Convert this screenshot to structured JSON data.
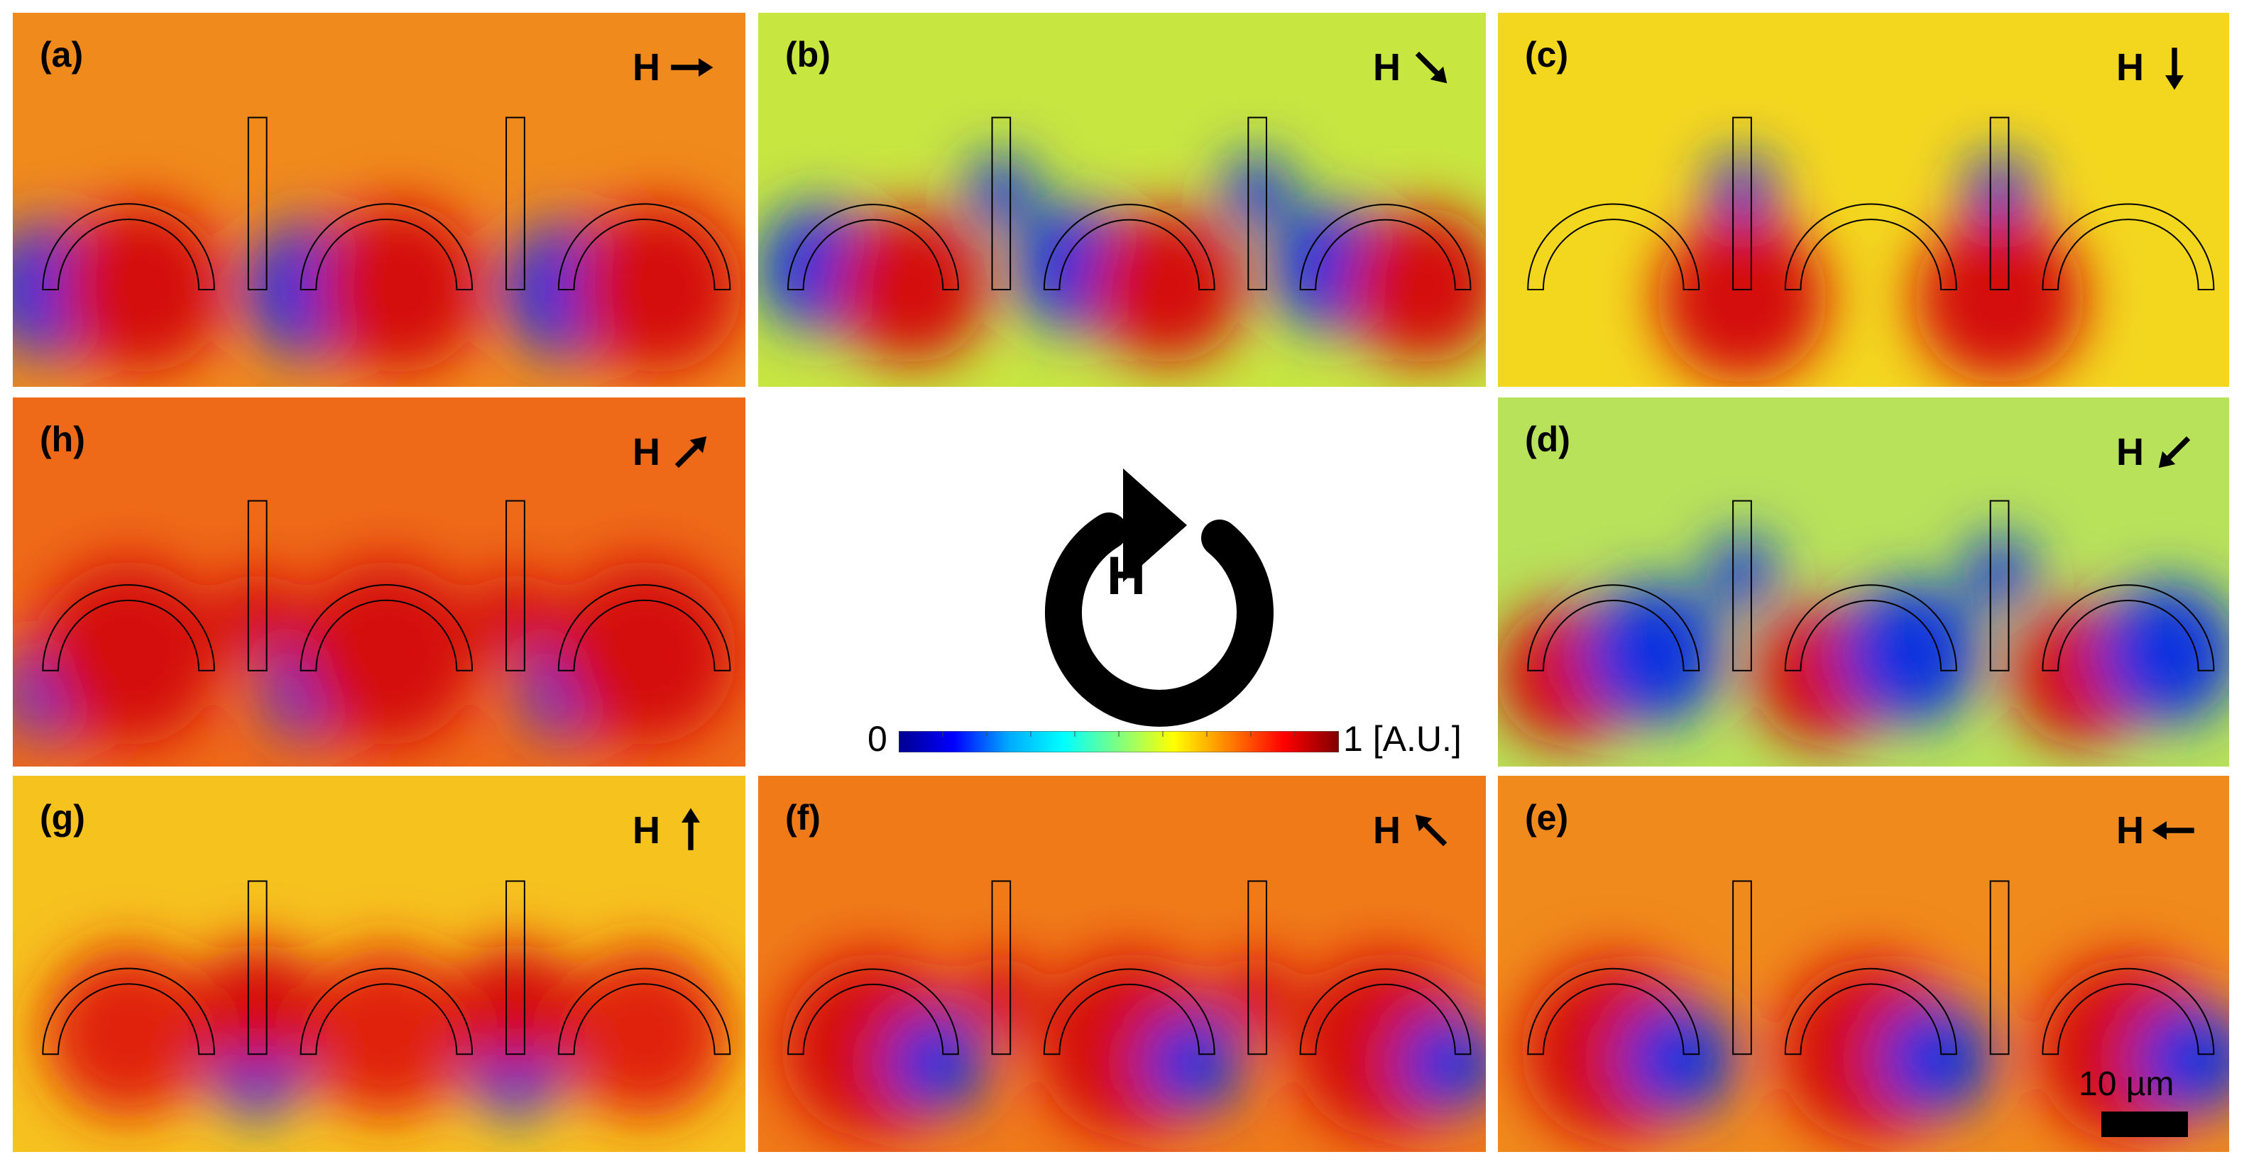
{
  "panels": [
    {
      "id": "a",
      "label": "(a)",
      "h_letter": "H",
      "h_arrow": "right-arrow-icon",
      "angle": 0
    },
    {
      "id": "b",
      "label": "(b)",
      "h_letter": "H",
      "h_arrow": "down-right-arrow-icon",
      "angle": 45
    },
    {
      "id": "c",
      "label": "(c)",
      "h_letter": "H",
      "h_arrow": "down-arrow-icon",
      "angle": 90
    },
    {
      "id": "h",
      "label": "(h)",
      "h_letter": "H",
      "h_arrow": "up-right-arrow-icon",
      "angle": -45
    },
    {
      "id": "d",
      "label": "(d)",
      "h_letter": "H",
      "h_arrow": "down-left-arrow-icon",
      "angle": 135
    },
    {
      "id": "g",
      "label": "(g)",
      "h_letter": "H",
      "h_arrow": "up-arrow-icon",
      "angle": -90
    },
    {
      "id": "f",
      "label": "(f)",
      "h_letter": "H",
      "h_arrow": "up-left-arrow-icon",
      "angle": -135
    },
    {
      "id": "e",
      "label": "(e)",
      "h_letter": "H",
      "h_arrow": "left-arrow-icon",
      "angle": 180
    }
  ],
  "center": {
    "rotation_letter": "H",
    "rotation_icon": "clockwise-rotation-arrow-icon"
  },
  "colorbar": {
    "min_label": "0",
    "max_label": "1 [A.U.]",
    "colormap": "jet",
    "colors": [
      "#00008f",
      "#0000ff",
      "#00aaff",
      "#00ffff",
      "#80ff80",
      "#ffff00",
      "#ff8000",
      "#ff0000",
      "#800000"
    ]
  },
  "scalebar": {
    "label": "10 µm"
  },
  "colors": {
    "warm_background": "#f08a1c",
    "yellow_background": "#f0e020",
    "green_background": "#c8e640",
    "hot": "#d41010",
    "cold": "#1030e0",
    "outline": "#000000"
  }
}
